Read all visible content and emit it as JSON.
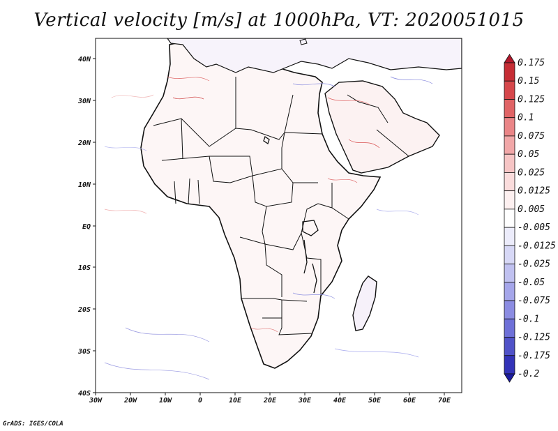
{
  "title": "Vertical velocity [m/s] at 1000hPa, VT: 2020051015",
  "credit": "GrADS: IGES/COLA",
  "map": {
    "x_tick_labels": [
      "30W",
      "20W",
      "10W",
      "0",
      "10E",
      "20E",
      "30E",
      "40E",
      "50E",
      "60E",
      "70E"
    ],
    "y_tick_labels": [
      "40N",
      "30N",
      "20N",
      "10N",
      "EQ",
      "10S",
      "20S",
      "30S",
      "40S"
    ],
    "lon_range": [
      -30,
      75
    ],
    "lat_range": [
      -40,
      45
    ]
  },
  "colorbar": {
    "labels": [
      "0.175",
      "0.15",
      "0.125",
      "0.1",
      "0.075",
      "0.05",
      "0.025",
      "0.0125",
      "0.005",
      "-0.005",
      "-0.0125",
      "-0.025",
      "-0.05",
      "-0.075",
      "-0.1",
      "-0.125",
      "-0.175",
      "-0.2"
    ],
    "colors": [
      "#b2182b",
      "#c62d35",
      "#d6474b",
      "#e06466",
      "#ea8587",
      "#f1a7a8",
      "#f6c5c5",
      "#fadcdc",
      "#fdf0f0",
      "#ffffff",
      "#ececfb",
      "#d7d8f6",
      "#c0c1f0",
      "#a5a6ea",
      "#8b8ce2",
      "#6e70d8",
      "#5052c8",
      "#3333b8",
      "#1c1ca0"
    ]
  }
}
